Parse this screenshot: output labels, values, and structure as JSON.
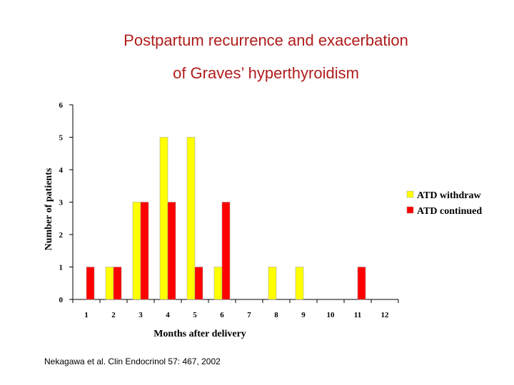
{
  "title_line1": "Postpartum recurrence and exacerbation",
  "title_line2": "of Graves’ hyperthyroidism",
  "citation": "Nekagawa et al. Clin Endocrinol 57: 467, 2002",
  "chart_data": {
    "type": "bar",
    "categories": [
      "1",
      "2",
      "3",
      "4",
      "5",
      "6",
      "7",
      "8",
      "9",
      "10",
      "11",
      "12"
    ],
    "series": [
      {
        "name": "ATD withdraw",
        "color": "#ffff00",
        "values": [
          0,
          1,
          3,
          5,
          5,
          1,
          0,
          1,
          1,
          0,
          0,
          0
        ]
      },
      {
        "name": "ATD continued",
        "color": "#ff0000",
        "values": [
          1,
          1,
          3,
          3,
          1,
          3,
          0,
          0,
          0,
          0,
          1,
          0
        ]
      }
    ],
    "xlabel": "Months after delivery",
    "ylabel": "Number of patients",
    "ylim": [
      0,
      6
    ],
    "yticks": [
      0,
      1,
      2,
      3,
      4,
      5,
      6
    ],
    "grid": false,
    "legend": "right"
  }
}
